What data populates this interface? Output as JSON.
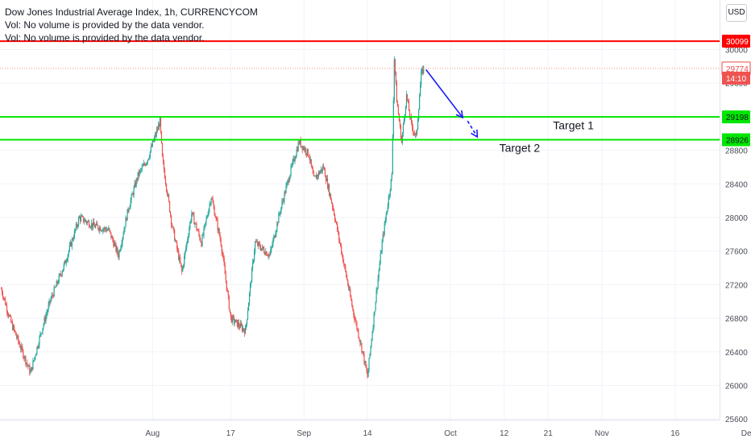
{
  "header": {
    "title": "Dow Jones Industrial Average Index, 1h, CURRENCYCOM",
    "vol_line_1": "Vol: No volume is provided by the data vendor.",
    "vol_line_2": "Vol: No volume is provided by the data vendor.",
    "currency_button": "USD"
  },
  "chart_data": {
    "type": "candlestick",
    "title": "Dow Jones Industrial Average Index, 1h, CURRENCYCOM",
    "xlabel": "",
    "ylabel": "",
    "ylim": [
      25600,
      30200
    ],
    "y_ticks": [
      25600,
      26000,
      26400,
      26800,
      27200,
      27600,
      28000,
      28400,
      28800,
      29200,
      29600,
      30000
    ],
    "x_ticks": [
      {
        "label": "Aug",
        "day": 31
      },
      {
        "label": "17",
        "day": 47
      },
      {
        "label": "Sep",
        "day": 62
      },
      {
        "label": "14",
        "day": 75
      },
      {
        "label": "Oct",
        "day": 92
      },
      {
        "label": "12",
        "day": 103
      },
      {
        "label": "21",
        "day": 112
      },
      {
        "label": "Nov",
        "day": 123
      },
      {
        "label": "16",
        "day": 138
      },
      {
        "label": "Dec",
        "day": 153
      }
    ],
    "grid": true,
    "up_color": "#26a69a",
    "down_color": "#ef5350",
    "price_path": [
      {
        "day": 0,
        "price": 27150
      },
      {
        "day": 2,
        "price": 26750
      },
      {
        "day": 4,
        "price": 26450
      },
      {
        "day": 6,
        "price": 26150
      },
      {
        "day": 8,
        "price": 26600
      },
      {
        "day": 10,
        "price": 27000
      },
      {
        "day": 13,
        "price": 27450
      },
      {
        "day": 16,
        "price": 28000
      },
      {
        "day": 19,
        "price": 27900
      },
      {
        "day": 22,
        "price": 27850
      },
      {
        "day": 24,
        "price": 27550
      },
      {
        "day": 26,
        "price": 28100
      },
      {
        "day": 28,
        "price": 28500
      },
      {
        "day": 30,
        "price": 28700
      },
      {
        "day": 32,
        "price": 29050
      },
      {
        "day": 32.5,
        "price": 29150
      },
      {
        "day": 33,
        "price": 28700
      },
      {
        "day": 35,
        "price": 27900
      },
      {
        "day": 37,
        "price": 27350
      },
      {
        "day": 39,
        "price": 28050
      },
      {
        "day": 41,
        "price": 27700
      },
      {
        "day": 43,
        "price": 28250
      },
      {
        "day": 45,
        "price": 27700
      },
      {
        "day": 47,
        "price": 26800
      },
      {
        "day": 50,
        "price": 26650
      },
      {
        "day": 52,
        "price": 27700
      },
      {
        "day": 55,
        "price": 27550
      },
      {
        "day": 57,
        "price": 28050
      },
      {
        "day": 59,
        "price": 28500
      },
      {
        "day": 61,
        "price": 28900
      },
      {
        "day": 63,
        "price": 28750
      },
      {
        "day": 64,
        "price": 28450
      },
      {
        "day": 66,
        "price": 28600
      },
      {
        "day": 68,
        "price": 28100
      },
      {
        "day": 70,
        "price": 27500
      },
      {
        "day": 72,
        "price": 26900
      },
      {
        "day": 74,
        "price": 26400
      },
      {
        "day": 75,
        "price": 26100
      },
      {
        "day": 77,
        "price": 27200
      },
      {
        "day": 78,
        "price": 27700
      },
      {
        "day": 80,
        "price": 28500
      },
      {
        "day": 80.5,
        "price": 29900
      },
      {
        "day": 81,
        "price": 29400
      },
      {
        "day": 82,
        "price": 28900
      },
      {
        "day": 83,
        "price": 29450
      },
      {
        "day": 84,
        "price": 29100
      },
      {
        "day": 85,
        "price": 28950
      },
      {
        "day": 86,
        "price": 29700
      },
      {
        "day": 86.5,
        "price": 29774
      }
    ],
    "projection_days": 23,
    "horizontal_levels": [
      {
        "name": "resistance",
        "value": 30099,
        "color": "#ff0000"
      },
      {
        "name": "target-1-level",
        "value": 29198,
        "color": "#00e600"
      },
      {
        "name": "target-2-level",
        "value": 28926,
        "color": "#00e600"
      }
    ],
    "last_price": 29774,
    "last_price_line_color": "#f28b82",
    "countdown": "14:10",
    "price_labels": [
      {
        "text": "30099",
        "value": 30099,
        "bg": "#ff0000",
        "color": "#ffffff"
      },
      {
        "text": "29774",
        "value": 29774,
        "bg": "#ffffff",
        "color": "#e84a4a",
        "border": "#e84a4a"
      },
      {
        "text": "14:10",
        "value": 29660,
        "bg": "#ef5350",
        "color": "#ffffff"
      },
      {
        "text": "29198",
        "value": 29198,
        "bg": "#00e600",
        "color": "#131722"
      },
      {
        "text": "28926",
        "value": 28926,
        "bg": "#00e600",
        "color": "#131722"
      }
    ],
    "annotations": [
      {
        "text": "Target 1",
        "day": 113,
        "price": 29050
      },
      {
        "text": "Target 2",
        "day": 102,
        "price": 28780
      }
    ],
    "arrows": [
      {
        "from": {
          "day": 87,
          "price": 29760
        },
        "to": {
          "day": 94.5,
          "price": 29190
        },
        "color": "#1a1aff",
        "style": "solid"
      },
      {
        "from": {
          "day": 95.5,
          "price": 29150
        },
        "to": {
          "day": 97.5,
          "price": 28960
        },
        "color": "#1a1aff",
        "style": "dashed"
      }
    ]
  }
}
